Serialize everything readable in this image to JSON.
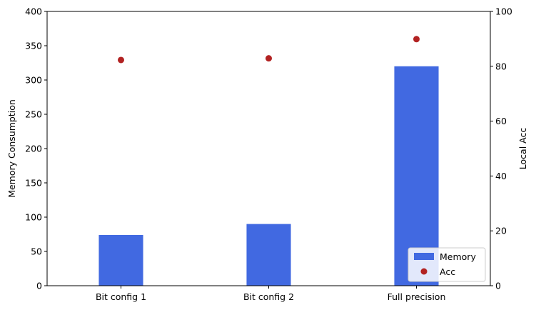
{
  "chart_data": {
    "type": "bar",
    "categories": [
      "Bit config 1",
      "Bit config 2",
      "Full precision"
    ],
    "series": [
      {
        "name": "Memory",
        "kind": "bar",
        "axis": "left",
        "color": "#4169e1",
        "values": [
          74,
          90,
          320
        ]
      },
      {
        "name": "Acc",
        "kind": "scatter",
        "axis": "right",
        "color": "#b22222",
        "values": [
          82.3,
          82.9,
          89.9
        ]
      }
    ],
    "ylabel": "Memory Consumption",
    "ylim": [
      0,
      400
    ],
    "yticks": [
      0,
      50,
      100,
      150,
      200,
      250,
      300,
      350,
      400
    ],
    "y2label": "Local Acc",
    "y2label_color": "#b22222",
    "y2lim": [
      0,
      100
    ],
    "y2ticks": [
      0,
      20,
      40,
      60,
      80,
      100
    ],
    "grid": false,
    "legend_position": "bottom-right"
  }
}
